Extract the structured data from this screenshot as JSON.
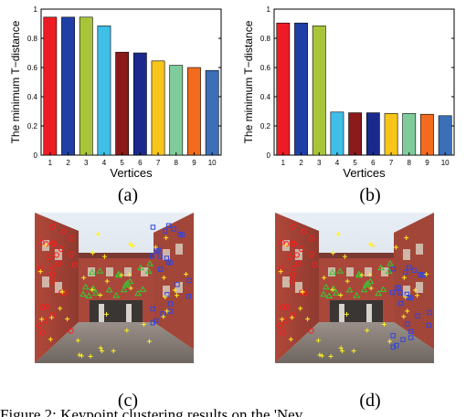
{
  "chart_data": [
    {
      "type": "bar",
      "panel": "(a)",
      "categories": [
        "1",
        "2",
        "3",
        "4",
        "5",
        "6",
        "7",
        "8",
        "9",
        "10"
      ],
      "values": [
        0.945,
        0.945,
        0.945,
        0.885,
        0.705,
        0.7,
        0.645,
        0.615,
        0.6,
        0.58
      ],
      "colors": [
        "#ed1c24",
        "#1f3fa6",
        "#a8c53a",
        "#3fbfe8",
        "#8b1a1a",
        "#1a2a8c",
        "#f7c51a",
        "#7fcc9a",
        "#f26b1f",
        "#3b6fb6"
      ],
      "xlabel": "Vertices",
      "ylabel": "The minimum T−distance",
      "ylim": [
        0,
        1
      ],
      "yticks": [
        "0",
        "0.2",
        "0.4",
        "0.6",
        "0.8",
        "1"
      ]
    },
    {
      "type": "bar",
      "panel": "(b)",
      "categories": [
        "1",
        "2",
        "3",
        "4",
        "5",
        "6",
        "7",
        "8",
        "9",
        "10"
      ],
      "values": [
        0.905,
        0.905,
        0.885,
        0.295,
        0.29,
        0.29,
        0.285,
        0.285,
        0.28,
        0.27
      ],
      "colors": [
        "#ed1c24",
        "#1f3fa6",
        "#a8c53a",
        "#3fbfe8",
        "#8b1a1a",
        "#1a2a8c",
        "#f7c51a",
        "#7fcc9a",
        "#f26b1f",
        "#3b6fb6"
      ],
      "xlabel": "Vertices",
      "ylabel": "The minimum T−distance",
      "ylim": [
        0,
        1
      ],
      "yticks": [
        "0",
        "0.2",
        "0.4",
        "0.6",
        "0.8",
        "1"
      ]
    }
  ],
  "captions": {
    "a": "(a)",
    "b": "(b)",
    "c": "(c)",
    "d": "(d)"
  },
  "cutline": "Figure 2: Keypoint clustering results on the 'Nev..."
}
